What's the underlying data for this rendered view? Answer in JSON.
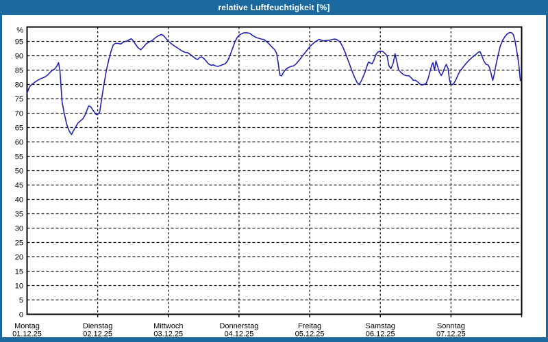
{
  "window": {
    "title": "relative Luftfeuchtigkeit [%]"
  },
  "colors": {
    "frame": "#1b699e",
    "title_text": "#ffffff",
    "plot_background": "#ffffff",
    "grid": "#000000",
    "axis": "#000000",
    "label_text": "#000000",
    "line": "#2020b4"
  },
  "chart_data": {
    "type": "line",
    "title": "relative Luftfeuchtigkeit [%]",
    "ylabel_unit": "%",
    "ylim": [
      0,
      100
    ],
    "yticks": [
      0,
      5,
      10,
      15,
      20,
      25,
      30,
      35,
      40,
      45,
      50,
      55,
      60,
      65,
      70,
      75,
      80,
      85,
      90,
      95
    ],
    "xlim_hours": [
      0,
      168
    ],
    "hours_per_day": 24,
    "grid": true,
    "legend": "none",
    "days": [
      {
        "label": "Montag",
        "date": "01.12.25"
      },
      {
        "label": "Dienstag",
        "date": "02.12.25"
      },
      {
        "label": "Mittwoch",
        "date": "03.12.25"
      },
      {
        "label": "Donnerstag",
        "date": "04.12.25"
      },
      {
        "label": "Freitag",
        "date": "05.12.25"
      },
      {
        "label": "Samstag",
        "date": "06.12.25"
      },
      {
        "label": "Sonntag",
        "date": "07.12.25"
      }
    ],
    "series": [
      {
        "name": "relative Luftfeuchtigkeit",
        "unit": "%",
        "points": [
          [
            0,
            77
          ],
          [
            0.5,
            78.3
          ],
          [
            1,
            79.4
          ],
          [
            1.6,
            80
          ],
          [
            2.5,
            80.7
          ],
          [
            3.7,
            81.5
          ],
          [
            4.8,
            82.1
          ],
          [
            6,
            82.6
          ],
          [
            7,
            83.3
          ],
          [
            8,
            84.4
          ],
          [
            8.7,
            85
          ],
          [
            9.3,
            85.3
          ],
          [
            10,
            86.2
          ],
          [
            10.7,
            87.6
          ],
          [
            11.2,
            84.5
          ],
          [
            11.9,
            74
          ],
          [
            12.6,
            70
          ],
          [
            13.5,
            66
          ],
          [
            14.3,
            63.8
          ],
          [
            15.1,
            62.6
          ],
          [
            15.7,
            63.8
          ],
          [
            16.5,
            65.2
          ],
          [
            17.3,
            66.6
          ],
          [
            18.1,
            67.3
          ],
          [
            19,
            68.1
          ],
          [
            19.8,
            69.6
          ],
          [
            20.4,
            71.2
          ],
          [
            20.9,
            72.5
          ],
          [
            21.6,
            72.3
          ],
          [
            22.3,
            71.2
          ],
          [
            22.9,
            70.3
          ],
          [
            23.4,
            69.6
          ],
          [
            23.8,
            69.5
          ],
          [
            24.3,
            69.9
          ],
          [
            24.7,
            70.6
          ],
          [
            25.1,
            73.4
          ],
          [
            25.5,
            76
          ],
          [
            26.1,
            80
          ],
          [
            27,
            85.2
          ],
          [
            27.8,
            88.8
          ],
          [
            28.5,
            91.5
          ],
          [
            29.3,
            93.8
          ],
          [
            30,
            94.3
          ],
          [
            30.9,
            94.3
          ],
          [
            31.8,
            94.1
          ],
          [
            32.8,
            94.8
          ],
          [
            33.8,
            95.1
          ],
          [
            34.6,
            95.5
          ],
          [
            35.4,
            95.9
          ],
          [
            36,
            95.3
          ],
          [
            36.7,
            94.2
          ],
          [
            37.6,
            92.9
          ],
          [
            38.6,
            92.1
          ],
          [
            39.5,
            93
          ],
          [
            40.5,
            94.2
          ],
          [
            41.5,
            94.8
          ],
          [
            42.5,
            95.3
          ],
          [
            43.5,
            96.2
          ],
          [
            44.5,
            96.9
          ],
          [
            45.6,
            97.4
          ],
          [
            46.4,
            97
          ],
          [
            47.2,
            96
          ],
          [
            48.1,
            95
          ],
          [
            49,
            94.2
          ],
          [
            50.2,
            93.3
          ],
          [
            51.4,
            92.5
          ],
          [
            52.6,
            91.7
          ],
          [
            53.6,
            91.2
          ],
          [
            54.5,
            91.1
          ],
          [
            55.5,
            90.4
          ],
          [
            56.5,
            89.6
          ],
          [
            57.4,
            88.9
          ],
          [
            57.9,
            88.7
          ],
          [
            58.7,
            89.4
          ],
          [
            59.3,
            89.6
          ],
          [
            60,
            89.1
          ],
          [
            60.8,
            88.2
          ],
          [
            61.7,
            87.1
          ],
          [
            62.5,
            86.7
          ],
          [
            63.3,
            86.8
          ],
          [
            64.1,
            86.4
          ],
          [
            64.9,
            86.3
          ],
          [
            65.7,
            86.6
          ],
          [
            66.5,
            86.9
          ],
          [
            67.3,
            87.2
          ],
          [
            67.9,
            87.9
          ],
          [
            68.5,
            89
          ],
          [
            69.1,
            90.6
          ],
          [
            69.9,
            92.8
          ],
          [
            70.7,
            95.1
          ],
          [
            71.4,
            96.4
          ],
          [
            72,
            97.1
          ],
          [
            72.8,
            97.6
          ],
          [
            73.7,
            98
          ],
          [
            74.6,
            98
          ],
          [
            75.7,
            97.8
          ],
          [
            76.7,
            97
          ],
          [
            77.7,
            96.4
          ],
          [
            78.6,
            96.1
          ],
          [
            79.6,
            95.8
          ],
          [
            80.6,
            95.6
          ],
          [
            81.5,
            94.8
          ],
          [
            82.4,
            93.9
          ],
          [
            83.3,
            92.9
          ],
          [
            84.2,
            92
          ],
          [
            84.8,
            90.8
          ],
          [
            85.3,
            87.5
          ],
          [
            85.9,
            83.2
          ],
          [
            86.5,
            83
          ],
          [
            87.1,
            84.2
          ],
          [
            87.9,
            85.3
          ],
          [
            88.8,
            85.9
          ],
          [
            89.7,
            86.3
          ],
          [
            90.6,
            86.5
          ],
          [
            91.4,
            87.2
          ],
          [
            92.4,
            88.4
          ],
          [
            93.4,
            89.7
          ],
          [
            94.4,
            91
          ],
          [
            95.3,
            92.2
          ],
          [
            96.2,
            93.3
          ],
          [
            97,
            94.1
          ],
          [
            98,
            94.9
          ],
          [
            99.1,
            95.7
          ],
          [
            99.8,
            95.5
          ],
          [
            100.6,
            95.2
          ],
          [
            101.6,
            95.3
          ],
          [
            102.6,
            95.4
          ],
          [
            103.5,
            95.6
          ],
          [
            104.3,
            95.8
          ],
          [
            105.1,
            95.7
          ],
          [
            105.8,
            95.2
          ],
          [
            106.5,
            94.5
          ],
          [
            107.3,
            93
          ],
          [
            108.2,
            90.8
          ],
          [
            109.2,
            88
          ],
          [
            110.2,
            85.2
          ],
          [
            111.2,
            82.6
          ],
          [
            112.1,
            80.7
          ],
          [
            112.8,
            80
          ],
          [
            113.5,
            81.2
          ],
          [
            114.3,
            83
          ],
          [
            115,
            84.8
          ],
          [
            115.6,
            86.8
          ],
          [
            116,
            87.8
          ],
          [
            116.6,
            87.5
          ],
          [
            117.2,
            87.2
          ],
          [
            117.8,
            88.4
          ],
          [
            118.5,
            90.4
          ],
          [
            119.2,
            91.3
          ],
          [
            119.9,
            91.6
          ],
          [
            120.8,
            91.5
          ],
          [
            121.6,
            90.8
          ],
          [
            122.3,
            89.9
          ],
          [
            122.9,
            86.5
          ],
          [
            123.6,
            85.5
          ],
          [
            124.4,
            87.5
          ],
          [
            125,
            90.7
          ],
          [
            125.6,
            88
          ],
          [
            126.2,
            85.1
          ],
          [
            127,
            84.2
          ],
          [
            127.9,
            83.4
          ],
          [
            128.8,
            83.1
          ],
          [
            129.8,
            83
          ],
          [
            130.6,
            82.2
          ],
          [
            131.2,
            81.5
          ],
          [
            132,
            81.4
          ],
          [
            132.8,
            80.8
          ],
          [
            133.6,
            80
          ],
          [
            134.1,
            79.8
          ],
          [
            134.9,
            80
          ],
          [
            135.6,
            80.4
          ],
          [
            136.3,
            82.3
          ],
          [
            136.9,
            84.6
          ],
          [
            137.5,
            86.8
          ],
          [
            137.9,
            87.6
          ],
          [
            138.4,
            84.8
          ],
          [
            138.9,
            88.2
          ],
          [
            139.4,
            86.5
          ],
          [
            140,
            84.3
          ],
          [
            140.7,
            83.1
          ],
          [
            141.3,
            84.3
          ],
          [
            141.9,
            85.9
          ],
          [
            142.4,
            87
          ],
          [
            143,
            85.5
          ],
          [
            143.5,
            81.6
          ],
          [
            143.9,
            80.2
          ],
          [
            144.5,
            79.9
          ],
          [
            145.1,
            80.6
          ],
          [
            145.8,
            81.9
          ],
          [
            146.5,
            83.6
          ],
          [
            147.2,
            84.8
          ],
          [
            148.1,
            86
          ],
          [
            149.2,
            87.4
          ],
          [
            150.3,
            88.6
          ],
          [
            151.5,
            89.7
          ],
          [
            152.6,
            90.6
          ],
          [
            153.4,
            91.3
          ],
          [
            153.9,
            91.4
          ],
          [
            154.5,
            89.9
          ],
          [
            155.2,
            88.1
          ],
          [
            155.9,
            87
          ],
          [
            156.6,
            86.8
          ],
          [
            157.2,
            85.6
          ],
          [
            157.8,
            83
          ],
          [
            158.2,
            81.4
          ],
          [
            158.7,
            83.5
          ],
          [
            159.3,
            86.9
          ],
          [
            160,
            90.1
          ],
          [
            160.7,
            93.2
          ],
          [
            161.5,
            95.3
          ],
          [
            162.3,
            96.6
          ],
          [
            163.2,
            97.7
          ],
          [
            164,
            98.1
          ],
          [
            164.6,
            98
          ],
          [
            165.2,
            97.3
          ],
          [
            165.7,
            95.5
          ],
          [
            166.2,
            92.5
          ],
          [
            166.7,
            89.5
          ],
          [
            167.1,
            86.5
          ],
          [
            167.4,
            83
          ],
          [
            167.6,
            81.3
          ]
        ]
      }
    ]
  }
}
